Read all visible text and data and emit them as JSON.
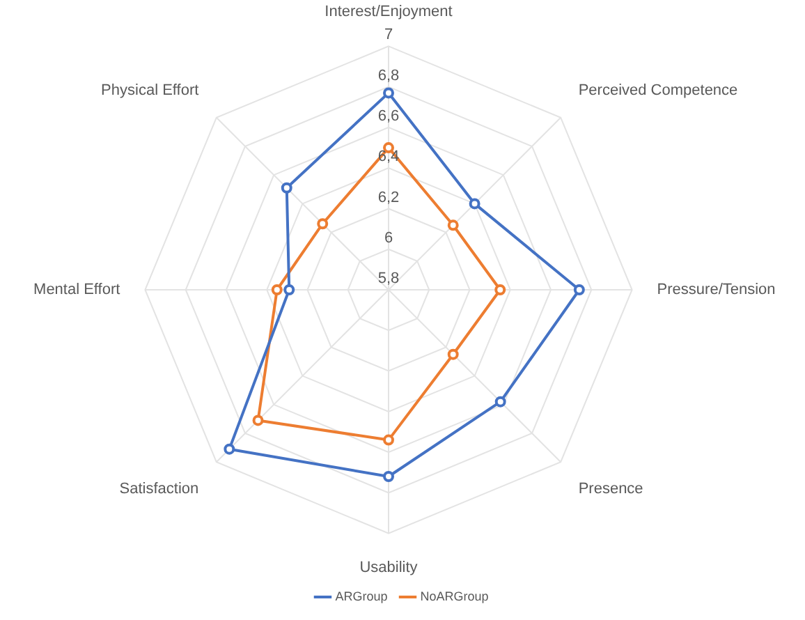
{
  "chart_data": {
    "type": "radar",
    "categories": [
      "Interest/Enjoyment",
      "Perceived Competence",
      "Pressure/Tension",
      "Presence",
      "Usability",
      "Satisfaction",
      "Mental Effort",
      "Physical Effort"
    ],
    "series": [
      {
        "name": "ARGroup",
        "color": "#4472c4",
        "values": [
          6.77,
          6.4,
          6.74,
          6.58,
          6.72,
          6.91,
          6.29,
          6.51
        ]
      },
      {
        "name": "NoARGroup",
        "color": "#ed7d31",
        "values": [
          6.5,
          6.25,
          6.35,
          6.25,
          6.54,
          6.71,
          6.35,
          6.26
        ]
      }
    ],
    "ylim": [
      5.8,
      7
    ],
    "yticks": [
      {
        "value": 5.8,
        "label": "5,8"
      },
      {
        "value": 6,
        "label": "6"
      },
      {
        "value": 6.2,
        "label": "6,2"
      },
      {
        "value": 6.4,
        "label": "6,4"
      },
      {
        "value": 6.6,
        "label": "6,6"
      },
      {
        "value": 6.8,
        "label": "6,8"
      },
      {
        "value": 7,
        "label": "7"
      }
    ],
    "grid": true,
    "legend": "bottom",
    "marker": "circle",
    "line_style": "solid"
  }
}
